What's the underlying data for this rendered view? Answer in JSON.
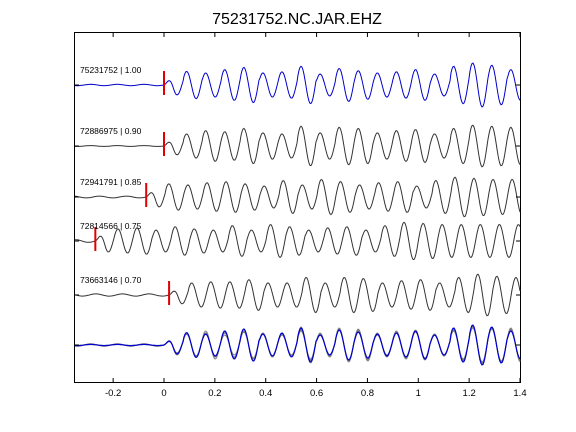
{
  "chart_data": {
    "type": "line",
    "title": "75231752.NC.JAR.EHZ",
    "xlabel": "",
    "ylabel": "",
    "xlim": [
      -0.35,
      1.4
    ],
    "x_ticks": [
      "-0.2",
      "0",
      "0.2",
      "0.4",
      "0.6",
      "0.8",
      "1",
      "1.2",
      "1.4"
    ],
    "x_tick_values": [
      -0.2,
      0,
      0.2,
      0.4,
      0.6,
      0.8,
      1.0,
      1.2,
      1.4
    ],
    "grid": false,
    "colors": {
      "primary": "#0000cc",
      "neighbor": "#333333",
      "stack_gray": "#7f7f7f",
      "pick": "#e00000"
    },
    "series": [
      {
        "label": "75231752 | 1.00",
        "pick_x": 0.0,
        "color": "#0000cc",
        "pre": 0.03,
        "amps": [
          0.45,
          0.62,
          0.55,
          0.7,
          0.8,
          0.55,
          0.6,
          0.85,
          0.5,
          0.75,
          0.65,
          0.55,
          0.6,
          0.7,
          0.5,
          0.85,
          1.0,
          0.9,
          0.7
        ]
      },
      {
        "label": "72886975 | 0.90",
        "pick_x": 0.0,
        "color": "#333333",
        "pre": 0.02,
        "amps": [
          0.4,
          0.55,
          0.7,
          0.65,
          0.8,
          0.6,
          0.55,
          0.9,
          0.6,
          0.85,
          0.8,
          0.6,
          0.7,
          0.75,
          0.55,
          0.8,
          0.95,
          0.9,
          0.85
        ]
      },
      {
        "label": "72941791 | 0.85",
        "pick_x": -0.07,
        "color": "#333333",
        "pre": 0.04,
        "amps": [
          0.45,
          0.6,
          0.55,
          0.65,
          0.7,
          0.6,
          0.5,
          0.75,
          0.55,
          0.8,
          0.7,
          0.55,
          0.65,
          0.7,
          0.5,
          0.75,
          0.9,
          0.85,
          0.8
        ]
      },
      {
        "label": "72814566 | 0.75",
        "pick_x": -0.27,
        "color": "#333333",
        "pre": 0.06,
        "amps": [
          0.5,
          0.55,
          0.6,
          0.5,
          0.65,
          0.55,
          0.5,
          0.7,
          0.5,
          0.75,
          0.65,
          0.5,
          0.6,
          0.65,
          0.5,
          0.7,
          0.85,
          0.8,
          0.75
        ]
      },
      {
        "label": "73663146 | 0.70",
        "pick_x": 0.02,
        "color": "#333333",
        "pre": 0.05,
        "amps": [
          0.4,
          0.55,
          0.6,
          0.6,
          0.7,
          0.55,
          0.55,
          0.8,
          0.55,
          0.8,
          0.75,
          0.55,
          0.65,
          0.7,
          0.55,
          0.8,
          0.95,
          0.85,
          0.8
        ]
      }
    ],
    "stack_label": ""
  }
}
